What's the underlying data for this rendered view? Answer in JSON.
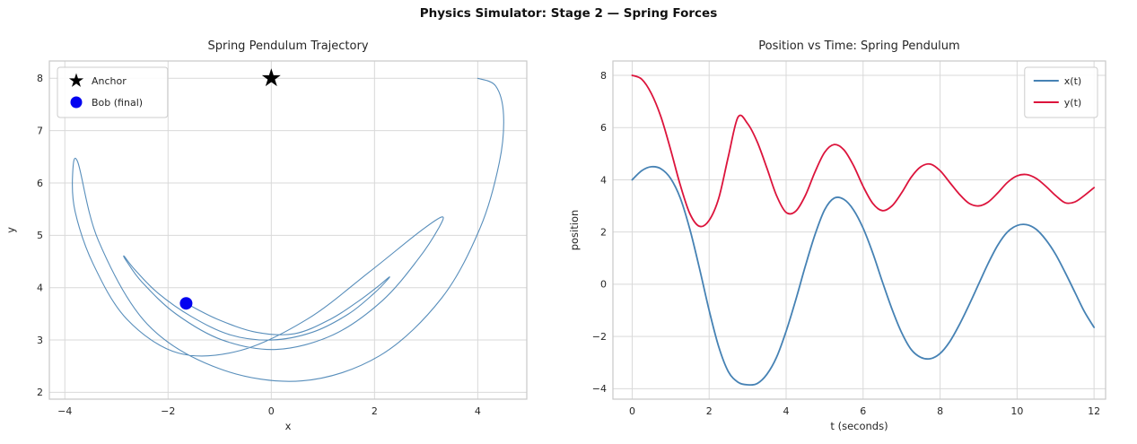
{
  "figure": {
    "title": "Physics Simulator: Stage 2 — Spring Forces"
  },
  "colors": {
    "text": "#262626",
    "grid": "#d9d9d9",
    "spine": "#c9c9c9",
    "steelblue": "#4682b4",
    "crimson": "#dc143c",
    "anchor": "#000000",
    "bob": "#0202f0"
  },
  "chart_data": [
    {
      "id": "trajectory",
      "type": "line",
      "title": "Spring Pendulum Trajectory",
      "xlabel": "x",
      "ylabel": "y",
      "xlim": [
        -4.3,
        4.95
      ],
      "ylim": [
        1.87,
        8.33
      ],
      "xticks": [
        -4,
        -2,
        0,
        2,
        4
      ],
      "yticks": [
        2,
        3,
        4,
        5,
        6,
        7,
        8
      ],
      "grid": true,
      "series": [
        {
          "name": "trajectory",
          "color": "#4682b4",
          "width": 1.1,
          "opacity": 0.9,
          "x": [
            4.0,
            4.35,
            4.5,
            4.42,
            4.05,
            3.3,
            2.1,
            0.6,
            -1.0,
            -2.4,
            -3.35,
            -3.75,
            -3.85,
            -3.8,
            -3.45,
            -2.8,
            -1.8,
            -0.6,
            0.7,
            1.9,
            2.85,
            3.3,
            3.25,
            2.85,
            2.15,
            1.2,
            0.1,
            -0.95,
            -1.85,
            -2.5,
            -2.8,
            -2.85,
            -2.65,
            -2.2,
            -1.55,
            -0.8,
            0.0,
            0.8,
            1.5,
            2.0,
            2.25,
            2.28,
            2.1,
            1.7,
            1.15,
            0.45,
            -0.3,
            -1.05,
            -1.65
          ],
          "y": [
            8.0,
            7.85,
            7.3,
            6.4,
            5.15,
            3.8,
            2.7,
            2.22,
            2.45,
            3.3,
            4.9,
            6.4,
            6.15,
            5.45,
            4.45,
            3.4,
            2.75,
            2.8,
            3.4,
            4.3,
            5.05,
            5.35,
            5.15,
            4.55,
            3.75,
            3.1,
            2.82,
            3.0,
            3.5,
            4.1,
            4.5,
            4.6,
            4.35,
            3.9,
            3.45,
            3.1,
            3.0,
            3.15,
            3.5,
            3.9,
            4.15,
            4.2,
            4.05,
            3.75,
            3.4,
            3.12,
            3.15,
            3.4,
            3.7
          ]
        }
      ],
      "markers": [
        {
          "label": "Anchor",
          "shape": "star",
          "color": "#000000",
          "x": 0,
          "y": 8,
          "size": 11
        },
        {
          "label": "Bob (final)",
          "shape": "circle",
          "color": "#0202f0",
          "x": -1.65,
          "y": 3.7,
          "size": 7
        }
      ],
      "legend": {
        "position": "upper-left",
        "items": [
          {
            "swatch": "star",
            "color": "#000000",
            "label": "Anchor"
          },
          {
            "swatch": "circle",
            "color": "#0202f0",
            "label": "Bob (final)"
          }
        ]
      }
    },
    {
      "id": "timeseries",
      "type": "line",
      "title": "Position vs Time: Spring Pendulum",
      "xlabel": "t (seconds)",
      "ylabel": "position",
      "xlim": [
        -0.5,
        12.3
      ],
      "ylim": [
        -4.4,
        8.55
      ],
      "xticks": [
        0,
        2,
        4,
        6,
        8,
        10,
        12
      ],
      "yticks": [
        -4,
        -2,
        0,
        2,
        4,
        6,
        8
      ],
      "grid": true,
      "x": [
        0,
        0.25,
        0.5,
        0.75,
        1,
        1.25,
        1.5,
        1.75,
        2,
        2.25,
        2.5,
        2.75,
        3,
        3.25,
        3.5,
        3.75,
        4,
        4.25,
        4.5,
        4.75,
        5,
        5.25,
        5.5,
        5.75,
        6,
        6.25,
        6.5,
        6.75,
        7,
        7.25,
        7.5,
        7.75,
        8,
        8.25,
        8.5,
        8.75,
        9,
        9.25,
        9.5,
        9.75,
        10,
        10.25,
        10.5,
        10.75,
        11,
        11.25,
        11.5,
        11.75,
        12
      ],
      "series": [
        {
          "name": "x(t)",
          "color": "#4682b4",
          "width": 1.8,
          "values": [
            4.0,
            4.35,
            4.5,
            4.42,
            4.05,
            3.3,
            2.1,
            0.6,
            -1.0,
            -2.4,
            -3.35,
            -3.75,
            -3.85,
            -3.8,
            -3.45,
            -2.8,
            -1.8,
            -0.6,
            0.7,
            1.9,
            2.85,
            3.3,
            3.25,
            2.85,
            2.15,
            1.2,
            0.1,
            -0.95,
            -1.85,
            -2.5,
            -2.8,
            -2.85,
            -2.65,
            -2.2,
            -1.55,
            -0.8,
            0.0,
            0.8,
            1.5,
            2.0,
            2.25,
            2.28,
            2.1,
            1.7,
            1.15,
            0.45,
            -0.3,
            -1.05,
            -1.65
          ]
        },
        {
          "name": "y(t)",
          "color": "#dc143c",
          "width": 1.8,
          "values": [
            8.0,
            7.85,
            7.3,
            6.4,
            5.15,
            3.8,
            2.7,
            2.22,
            2.45,
            3.3,
            4.9,
            6.4,
            6.15,
            5.45,
            4.45,
            3.4,
            2.75,
            2.8,
            3.4,
            4.3,
            5.05,
            5.35,
            5.15,
            4.55,
            3.75,
            3.1,
            2.82,
            3.0,
            3.5,
            4.1,
            4.5,
            4.6,
            4.35,
            3.9,
            3.45,
            3.1,
            3.0,
            3.15,
            3.5,
            3.9,
            4.15,
            4.2,
            4.05,
            3.75,
            3.4,
            3.12,
            3.15,
            3.4,
            3.7
          ]
        }
      ],
      "legend": {
        "position": "upper-right",
        "items": [
          {
            "swatch": "line",
            "color": "#4682b4",
            "label": "x(t)"
          },
          {
            "swatch": "line",
            "color": "#dc143c",
            "label": "y(t)"
          }
        ]
      }
    }
  ]
}
